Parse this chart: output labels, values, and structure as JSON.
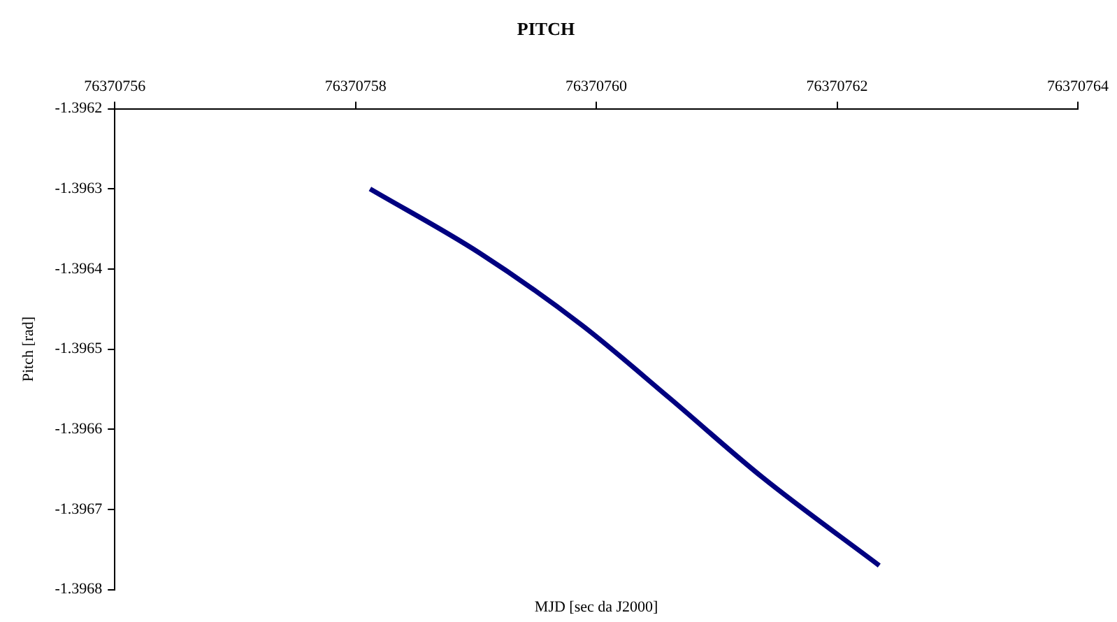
{
  "chart_data": {
    "type": "line",
    "title": "PITCH",
    "xlabel": "MJD [sec da J2000]",
    "ylabel": "Pitch [rad]",
    "x": [
      76370758.12,
      76370759.03,
      76370759.88,
      76370760.6,
      76370761.38,
      76370762.35
    ],
    "series": [
      {
        "color": "#000080",
        "values": [
          -1.3963,
          -1.39638,
          -1.39647,
          -1.39656,
          -1.39666,
          -1.39677
        ]
      }
    ],
    "xlim": [
      76370756,
      76370764
    ],
    "xticks": [
      76370756,
      76370758,
      76370760,
      76370762,
      76370764
    ],
    "ylim": [
      -1.3968,
      -1.3962
    ],
    "yticks": [
      -1.3962,
      -1.3963,
      -1.3964,
      -1.3965,
      -1.3966,
      -1.3967,
      -1.3968
    ],
    "grid": false,
    "legend": false,
    "marker": "none",
    "line_style": "solid"
  }
}
